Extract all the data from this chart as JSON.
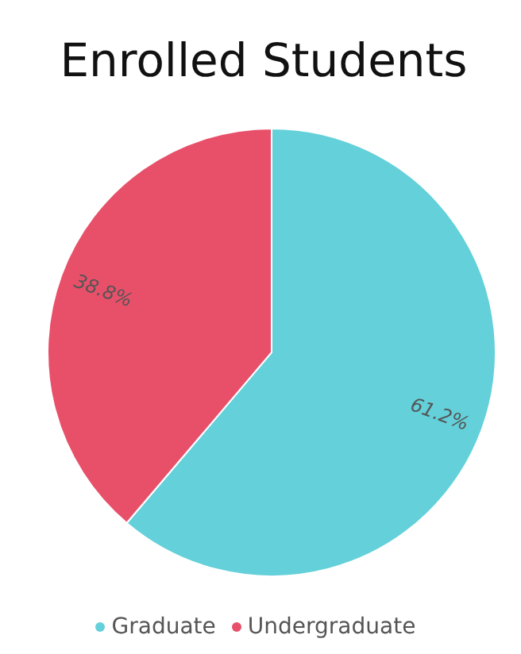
{
  "chart_data": {
    "type": "pie",
    "title": "Enrolled Students",
    "categories": [
      "Graduate",
      "Undergraduate"
    ],
    "values": [
      61.2,
      38.8
    ],
    "colors": [
      "#63d0da",
      "#e8506a"
    ],
    "value_labels": [
      "61.2%",
      "38.8%"
    ],
    "legend": "bottom"
  }
}
